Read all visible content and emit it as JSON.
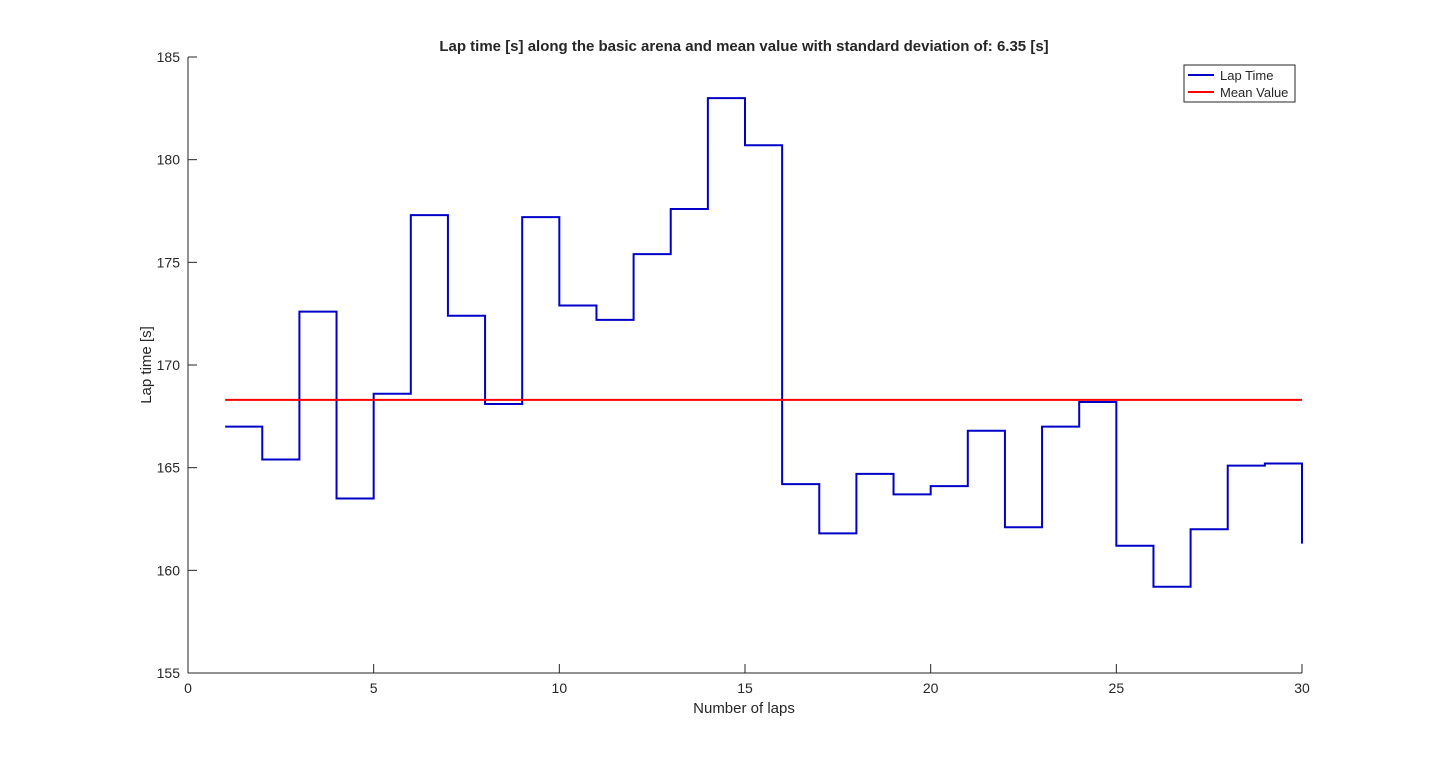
{
  "chart_data": {
    "type": "line",
    "title": "Lap time [s] along the basic arena and mean value with standard deviation of: 6.35 [s]",
    "xlabel": "Number of laps",
    "ylabel": "Lap time [s]",
    "xlim": [
      0,
      30
    ],
    "ylim": [
      155,
      185
    ],
    "xticks": [
      0,
      5,
      10,
      15,
      20,
      25,
      30
    ],
    "yticks": [
      155,
      160,
      165,
      170,
      175,
      180,
      185
    ],
    "grid": false,
    "legend_position": "top-right",
    "step": true,
    "series": [
      {
        "name": "Lap Time",
        "color": "#0000c8",
        "x": [
          1,
          2,
          3,
          4,
          5,
          6,
          7,
          8,
          9,
          10,
          11,
          12,
          13,
          14,
          15,
          16,
          17,
          18,
          19,
          20,
          21,
          22,
          23,
          24,
          25,
          26,
          27,
          28,
          29,
          30
        ],
        "values": [
          167.0,
          165.4,
          172.6,
          163.5,
          168.6,
          177.3,
          172.4,
          168.1,
          177.2,
          172.9,
          172.2,
          175.4,
          177.6,
          183.0,
          180.7,
          164.2,
          161.8,
          164.7,
          163.7,
          164.1,
          166.8,
          162.1,
          167.0,
          168.2,
          161.2,
          159.2,
          162.0,
          165.1,
          165.2,
          161.3
        ]
      },
      {
        "name": "Mean Value",
        "color": "#ff0000",
        "x": [
          1,
          30
        ],
        "values": [
          168.3,
          168.3
        ]
      }
    ]
  }
}
